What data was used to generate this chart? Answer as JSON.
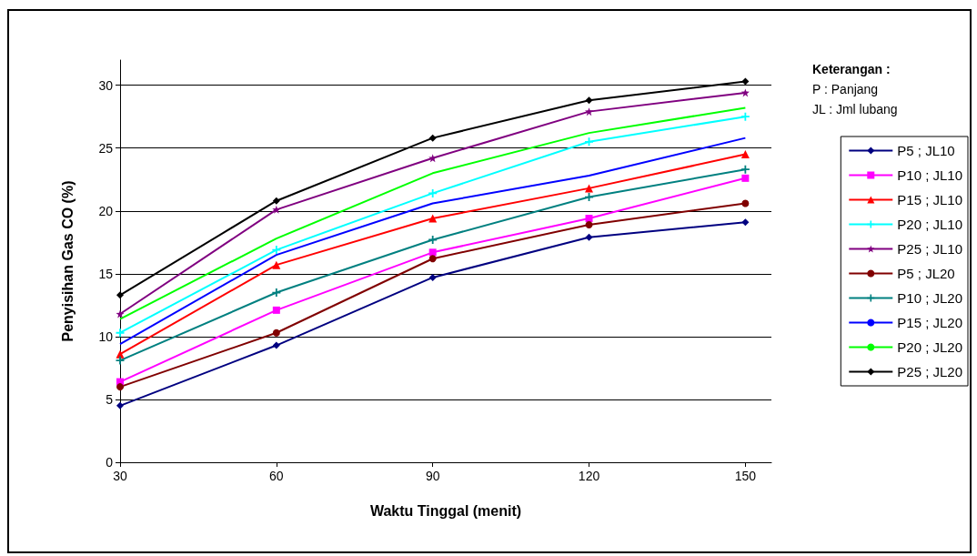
{
  "chart_data": {
    "type": "line",
    "xlabel": "Waktu Tinggal (menit)",
    "ylabel": "Penyisihan Gas CO (%)",
    "annotations": [
      "Keterangan :",
      "P : Panjang",
      "JL : Jml lubang"
    ],
    "x": [
      30,
      60,
      90,
      120,
      150
    ],
    "xlim": [
      30,
      155
    ],
    "xticks": [
      30,
      60,
      90,
      120,
      150
    ],
    "ylim": [
      0,
      32
    ],
    "yticks": [
      0,
      5,
      10,
      15,
      20,
      25,
      30
    ],
    "grid": "y",
    "legend": "right",
    "line_style": "solid",
    "series": [
      {
        "name": "P5 ; JL10",
        "color": "#000080",
        "marker": "diamond",
        "values": [
          4.5,
          9.3,
          14.7,
          17.9,
          19.1
        ]
      },
      {
        "name": "P10 ; JL10",
        "color": "#ff00ff",
        "marker": "square",
        "values": [
          6.4,
          12.1,
          16.7,
          19.4,
          22.6
        ]
      },
      {
        "name": "P15 ; JL10",
        "color": "#ff0000",
        "marker": "triangle",
        "values": [
          8.6,
          15.7,
          19.4,
          21.8,
          24.5
        ]
      },
      {
        "name": "P20 ; JL10",
        "color": "#00ffff",
        "marker": "cross",
        "values": [
          10.3,
          16.9,
          21.4,
          25.5,
          27.5
        ]
      },
      {
        "name": "P25 ; JL10",
        "color": "#800080",
        "marker": "star",
        "values": [
          11.8,
          20.1,
          24.2,
          27.9,
          29.4
        ]
      },
      {
        "name": "P5 ; JL20",
        "color": "#800000",
        "marker": "circle",
        "values": [
          6.0,
          10.3,
          16.2,
          18.9,
          20.6
        ]
      },
      {
        "name": "P10 ; JL20",
        "color": "#008080",
        "marker": "cross",
        "values": [
          8.1,
          13.5,
          17.7,
          21.1,
          23.3
        ]
      },
      {
        "name": "P15 ; JL20",
        "color": "#0000ff",
        "marker": "none",
        "values": [
          9.4,
          16.5,
          20.6,
          22.8,
          25.8
        ]
      },
      {
        "name": "P20 ; JL20",
        "color": "#00ff00",
        "marker": "none",
        "values": [
          11.4,
          17.8,
          23.0,
          26.2,
          28.2
        ]
      },
      {
        "name": "P25 ; JL20",
        "color": "#000000",
        "marker": "diamond",
        "values": [
          13.3,
          20.8,
          25.8,
          28.8,
          30.3
        ]
      }
    ]
  }
}
